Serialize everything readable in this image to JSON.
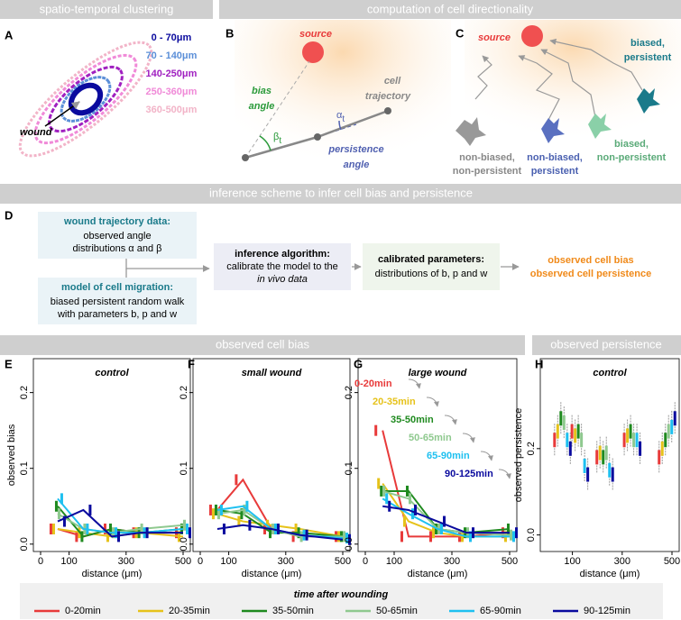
{
  "headers": {
    "clustering": "spatio-temporal clustering",
    "directionality": "computation of cell directionality",
    "inference": "inference scheme to infer cell bias and persistence",
    "bias": "observed cell bias",
    "persistence": "observed persistence"
  },
  "letters": [
    "A",
    "B",
    "C",
    "D",
    "E",
    "F",
    "G",
    "H"
  ],
  "panel_a": {
    "distances": [
      {
        "label": "0 - 70μm",
        "color": "#0a0a9e"
      },
      {
        "label": "70 - 140μm",
        "color": "#5b8fd8"
      },
      {
        "label": "140-250μm",
        "color": "#a020c0"
      },
      {
        "label": "250-360μm",
        "color": "#f08ad8"
      },
      {
        "label": "360-500μm",
        "color": "#f2b4c8"
      }
    ],
    "wound": "wound"
  },
  "panel_b": {
    "source": "source",
    "bias_angle": [
      "bias",
      "angle"
    ],
    "cell_trajectory": [
      "cell",
      "trajectory"
    ],
    "beta": {
      "symbol": "β",
      "subscript": "t"
    },
    "alpha": {
      "symbol": "α",
      "subscript": "t"
    },
    "persistence_angle": [
      "persistence",
      "angle"
    ]
  },
  "panel_c": {
    "source": "source",
    "biased_persistent": [
      "biased,",
      "persistent"
    ],
    "non_biased_non_persistent": [
      "non-biased,",
      "non-persistent"
    ],
    "non_biased_persistent": [
      "non-biased,",
      "persistent"
    ],
    "biased_non_persistent": [
      "biased,",
      "non-persistent"
    ]
  },
  "panel_d": {
    "wound_data": {
      "title": "wound trajectory data:",
      "lines": [
        "observed angle",
        "distributions α and β"
      ]
    },
    "model": {
      "title": "model of cell migration:",
      "lines": [
        "biased persistent random walk",
        "with parameters b, p and w"
      ]
    },
    "algorithm": {
      "title": "inference algorithm:",
      "lines": [
        "calibrate the model to the",
        "in vivo data"
      ]
    },
    "calibrated": {
      "title": "calibrated parameters:",
      "lines": [
        "distributions of b, p and w"
      ]
    },
    "outputs": [
      "observed cell bias",
      "observed cell persistence"
    ]
  },
  "legend": {
    "title": "time after wounding",
    "items": [
      {
        "name": "0-20min",
        "color": "#e83a3a"
      },
      {
        "name": "20-35min",
        "color": "#e6c21a"
      },
      {
        "name": "35-50min",
        "color": "#1f8a1f"
      },
      {
        "name": "50-65min",
        "color": "#8fc98f"
      },
      {
        "name": "65-90min",
        "color": "#1ec0f0"
      },
      {
        "name": "90-125min",
        "color": "#0a0a9e"
      }
    ]
  },
  "chart_data": [
    {
      "type": "line",
      "title": "control",
      "ylabel": "observed bias",
      "xlabel": "distance (μm)",
      "x": [
        60,
        150,
        250,
        350,
        500
      ],
      "xlim": [
        0,
        500
      ],
      "xticks": [
        0,
        100,
        300,
        500
      ],
      "ylim": [
        -0.005,
        0.24
      ],
      "yticks": [
        {
          "value": 0,
          "label": "0.0"
        },
        0.1,
        0.2
      ],
      "series": [
        {
          "values": [
            0.02,
            0.01,
            0.02,
            0.015,
            0.015
          ]
        },
        {
          "values": [
            0.02,
            0.015,
            0.01,
            0.015,
            0.01
          ]
        },
        {
          "values": [
            0.05,
            0.01,
            0.02,
            0.015,
            0.02
          ]
        },
        {
          "values": [
            0.04,
            0.02,
            0.015,
            0.02,
            0.025
          ]
        },
        {
          "values": [
            0.06,
            0.02,
            0.015,
            0.015,
            0.02
          ]
        },
        {
          "values": [
            0.03,
            0.045,
            0.01,
            0.015,
            0.015
          ]
        }
      ]
    },
    {
      "type": "line",
      "title": "small wound",
      "xlabel": "distance (μm)",
      "x": [
        60,
        150,
        250,
        350,
        500
      ],
      "xlim": [
        0,
        500
      ],
      "xticks": [
        0,
        100,
        300,
        500
      ],
      "ylim": [
        -0.005,
        0.24
      ],
      "yticks": [
        {
          "value": 0,
          "label": "0.0"
        },
        0.1,
        0.2
      ],
      "series": [
        {
          "values": [
            0.045,
            0.085,
            0.02,
            0.01,
            0.01
          ]
        },
        {
          "values": [
            0.04,
            0.03,
            0.025,
            0.02,
            0.01
          ]
        },
        {
          "values": [
            0.045,
            0.04,
            0.015,
            0.015,
            0.01
          ]
        },
        {
          "values": [
            0.04,
            0.045,
            0.02,
            0.01,
            0.01
          ]
        },
        {
          "values": [
            0.045,
            0.05,
            0.02,
            0.012,
            0.008
          ]
        },
        {
          "values": [
            0.02,
            0.025,
            0.02,
            0.012,
            0.006
          ]
        }
      ]
    },
    {
      "type": "line",
      "title": "large wound",
      "xlabel": "distance (μm)",
      "x": [
        60,
        150,
        250,
        350,
        500
      ],
      "xlim": [
        0,
        500
      ],
      "xticks": [
        0,
        100,
        300,
        500
      ],
      "ylim": [
        -0.005,
        0.24
      ],
      "yticks": [
        {
          "value": 0,
          "label": "0.0"
        },
        0.1,
        0.2
      ],
      "annotated": true,
      "series": [
        {
          "values": [
            0.15,
            0.01,
            0.01,
            0.01,
            0.015
          ]
        },
        {
          "values": [
            0.08,
            0.03,
            0.015,
            0.01,
            0.01
          ]
        },
        {
          "values": [
            0.07,
            0.07,
            0.02,
            0.015,
            0.02
          ]
        },
        {
          "values": [
            0.07,
            0.06,
            0.02,
            0.015,
            0.012
          ]
        },
        {
          "values": [
            0.06,
            0.04,
            0.02,
            0.01,
            0.01
          ]
        },
        {
          "values": [
            0.05,
            0.045,
            0.03,
            0.015,
            0.015
          ]
        }
      ]
    },
    {
      "type": "box",
      "title": "control",
      "ylabel": "observed persistence",
      "xlabel": "distance (μm)",
      "x": [
        60,
        130,
        230,
        340,
        480
      ],
      "xlim": [
        0,
        500
      ],
      "xticks": [
        100,
        300,
        500
      ],
      "ylim": [
        -0.03,
        0.4
      ],
      "yticks": [
        {
          "value": 0,
          "label": "0.0"
        },
        0.2
      ],
      "series": [
        {
          "values": [
            0.22,
            0.24,
            0.18,
            0.22,
            0.18
          ]
        },
        {
          "values": [
            0.24,
            0.23,
            0.19,
            0.23,
            0.2
          ]
        },
        {
          "values": [
            0.27,
            0.24,
            0.18,
            0.24,
            0.22
          ]
        },
        {
          "values": [
            0.26,
            0.22,
            0.19,
            0.22,
            0.24
          ]
        },
        {
          "values": [
            0.22,
            0.16,
            0.15,
            0.22,
            0.25
          ]
        },
        {
          "values": [
            0.2,
            0.14,
            0.14,
            0.2,
            0.27
          ]
        }
      ]
    }
  ]
}
